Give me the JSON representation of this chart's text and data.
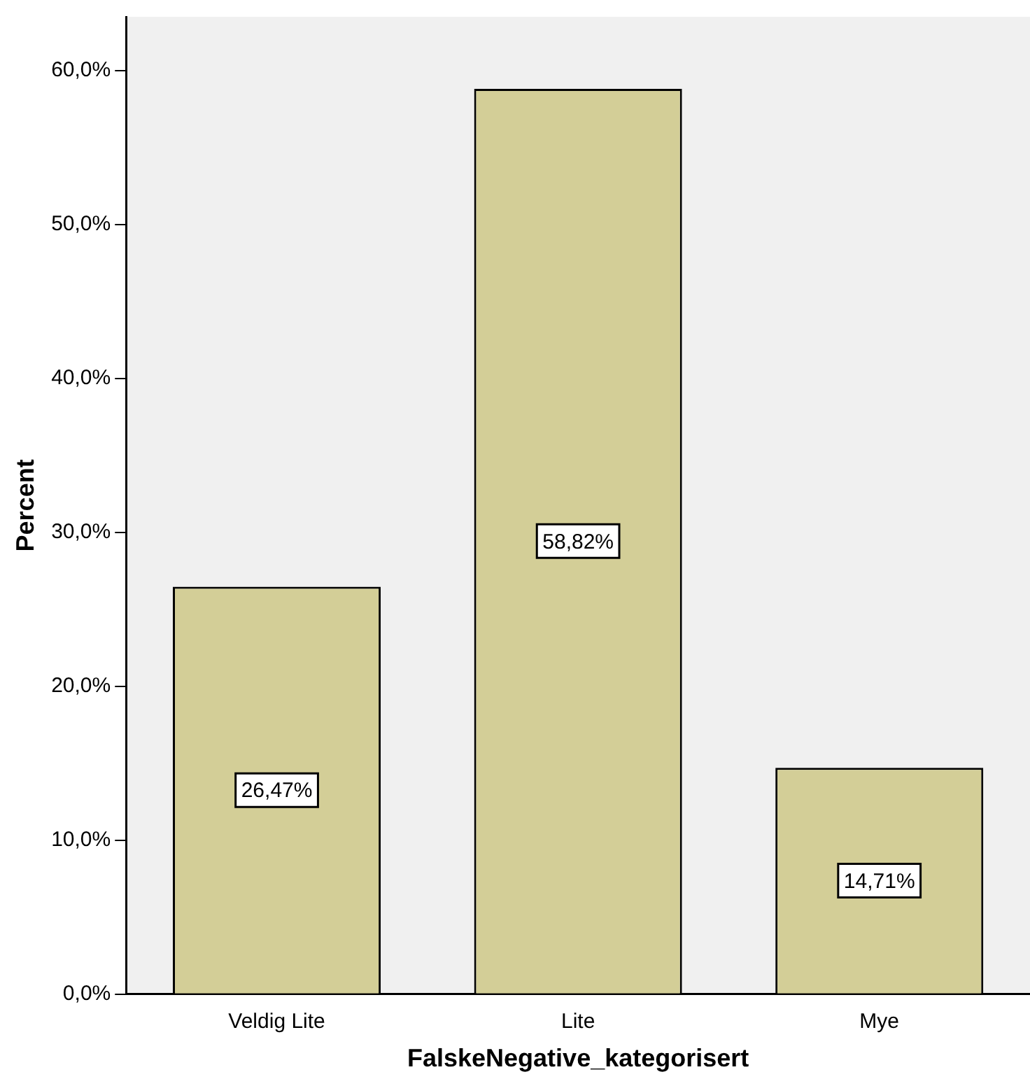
{
  "chart_data": {
    "type": "bar",
    "xlabel": "FalskeNegative_kategorisert",
    "ylabel": "Percent",
    "categories": [
      "Veldig Lite",
      "Lite",
      "Mye"
    ],
    "values": [
      26.47,
      58.82,
      14.71
    ],
    "value_labels": [
      "26,47%",
      "58,82%",
      "14,71%"
    ],
    "color": "#d3ce97",
    "ylim": [
      0,
      63.5
    ],
    "yticks": [
      {
        "value": 0,
        "label": "0,0%"
      },
      {
        "value": 10,
        "label": "10,0%"
      },
      {
        "value": 20,
        "label": "20,0%"
      },
      {
        "value": 30,
        "label": "30,0%"
      },
      {
        "value": 40,
        "label": "40,0%"
      },
      {
        "value": 50,
        "label": "50,0%"
      },
      {
        "value": 60,
        "label": "60,0%"
      }
    ],
    "grid": false,
    "legend": false
  }
}
